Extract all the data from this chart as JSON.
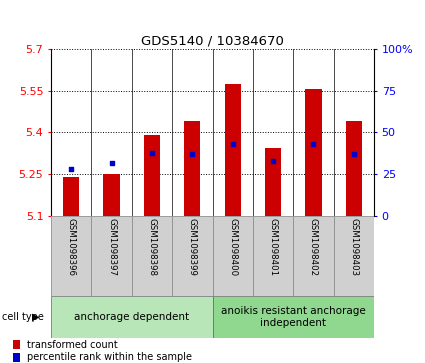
{
  "title": "GDS5140 / 10384670",
  "samples": [
    "GSM1098396",
    "GSM1098397",
    "GSM1098398",
    "GSM1098399",
    "GSM1098400",
    "GSM1098401",
    "GSM1098402",
    "GSM1098403"
  ],
  "bar_values": [
    5.24,
    5.25,
    5.39,
    5.44,
    5.575,
    5.345,
    5.555,
    5.44
  ],
  "percentile_values": [
    28,
    32,
    38,
    37,
    43,
    33,
    43,
    37
  ],
  "y_min": 5.1,
  "y_max": 5.7,
  "y_ticks": [
    5.1,
    5.25,
    5.4,
    5.55,
    5.7
  ],
  "right_y_ticks": [
    0,
    25,
    50,
    75,
    100
  ],
  "bar_color": "#cc0000",
  "percentile_color": "#0000cc",
  "group1_label": "anchorage dependent",
  "group2_label": "anoikis resistant anchorage\nindependent",
  "group1_indices": [
    0,
    1,
    2,
    3
  ],
  "group2_indices": [
    4,
    5,
    6,
    7
  ],
  "group1_bg": "#b8e6b8",
  "group2_bg": "#90d890",
  "sample_bg": "#d0d0d0",
  "cell_type_label": "cell type",
  "legend_bar_label": "transformed count",
  "legend_pct_label": "percentile rank within the sample",
  "background_color": "#ffffff",
  "bar_width": 0.4
}
